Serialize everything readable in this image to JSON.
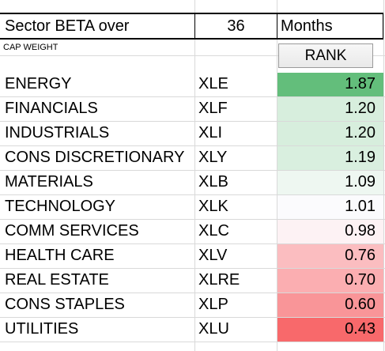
{
  "header": {
    "title": "Sector BETA  over",
    "period": "36",
    "unit": "Months",
    "cap_weight_label": "CAP WEIGHT",
    "rank_button_label": "RANK"
  },
  "rows": [
    {
      "sector": "ENERGY",
      "ticker": "XLE",
      "beta": "1.87",
      "fill": "#63be7b"
    },
    {
      "sector": "FINANCIALS",
      "ticker": "XLF",
      "beta": "1.20",
      "fill": "#d7eedd"
    },
    {
      "sector": "INDUSTRIALS",
      "ticker": "XLI",
      "beta": "1.20",
      "fill": "#d7eedd"
    },
    {
      "sector": "CONS DISCRETIONARY",
      "ticker": "XLY",
      "beta": "1.19",
      "fill": "#d9efdf"
    },
    {
      "sector": "MATERIALS",
      "ticker": "XLB",
      "beta": "1.09",
      "fill": "#eef7f1"
    },
    {
      "sector": "TECHNOLOGY",
      "ticker": "XLK",
      "beta": "1.01",
      "fill": "#fbfbfd"
    },
    {
      "sector": "COMM SERVICES",
      "ticker": "XLC",
      "beta": "0.98",
      "fill": "#fdf2f4"
    },
    {
      "sector": "HEALTH CARE",
      "ticker": "XLV",
      "beta": "0.76",
      "fill": "#fbbdc0"
    },
    {
      "sector": "REAL ESTATE",
      "ticker": "XLRE",
      "beta": "0.70",
      "fill": "#fbaeb1"
    },
    {
      "sector": "CONS STAPLES",
      "ticker": "XLP",
      "beta": "0.60",
      "fill": "#f99598"
    },
    {
      "sector": "UTILITIES",
      "ticker": "XLU",
      "beta": "0.43",
      "fill": "#f8696b"
    }
  ]
}
